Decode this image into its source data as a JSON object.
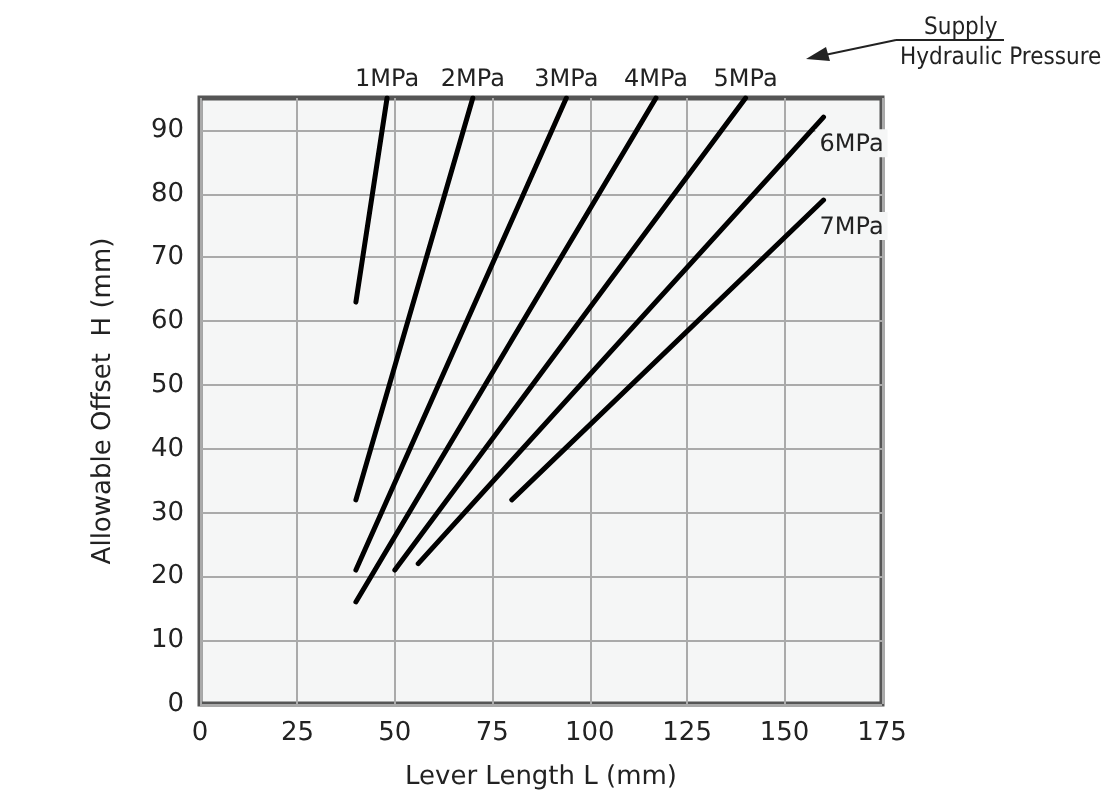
{
  "chart_data": {
    "type": "line",
    "xlabel": "Lever Length L (mm)",
    "ylabel": "Allowable Offset  H (mm)",
    "annotations": [
      "Supply",
      "Hydraulic Pressure"
    ],
    "series": [
      {
        "name": "1MPa",
        "color": "#000000",
        "x": [
          40,
          48
        ],
        "values": [
          63,
          95
        ]
      },
      {
        "name": "2MPa",
        "color": "#000000",
        "x": [
          40,
          70
        ],
        "values": [
          32,
          95
        ]
      },
      {
        "name": "3MPa",
        "color": "#000000",
        "x": [
          40,
          94
        ],
        "values": [
          21,
          95
        ]
      },
      {
        "name": "4MPa",
        "color": "#000000",
        "x": [
          40,
          117
        ],
        "values": [
          16,
          95
        ]
      },
      {
        "name": "5MPa",
        "color": "#000000",
        "x": [
          50,
          140
        ],
        "values": [
          21,
          95
        ]
      },
      {
        "name": "6MPa",
        "color": "#000000",
        "x": [
          56,
          160
        ],
        "values": [
          22,
          92
        ]
      },
      {
        "name": "7MPa",
        "color": "#000000",
        "x": [
          80,
          160
        ],
        "values": [
          32,
          79
        ]
      }
    ],
    "xlim": [
      0,
      175
    ],
    "xticks": [
      0,
      25,
      50,
      75,
      100,
      125,
      150,
      175
    ],
    "ylim": [
      0,
      95
    ],
    "yticks": [
      0,
      10,
      20,
      30,
      40,
      50,
      60,
      70,
      80,
      90
    ],
    "grid": true,
    "marker": "none",
    "line_style": "solid"
  }
}
